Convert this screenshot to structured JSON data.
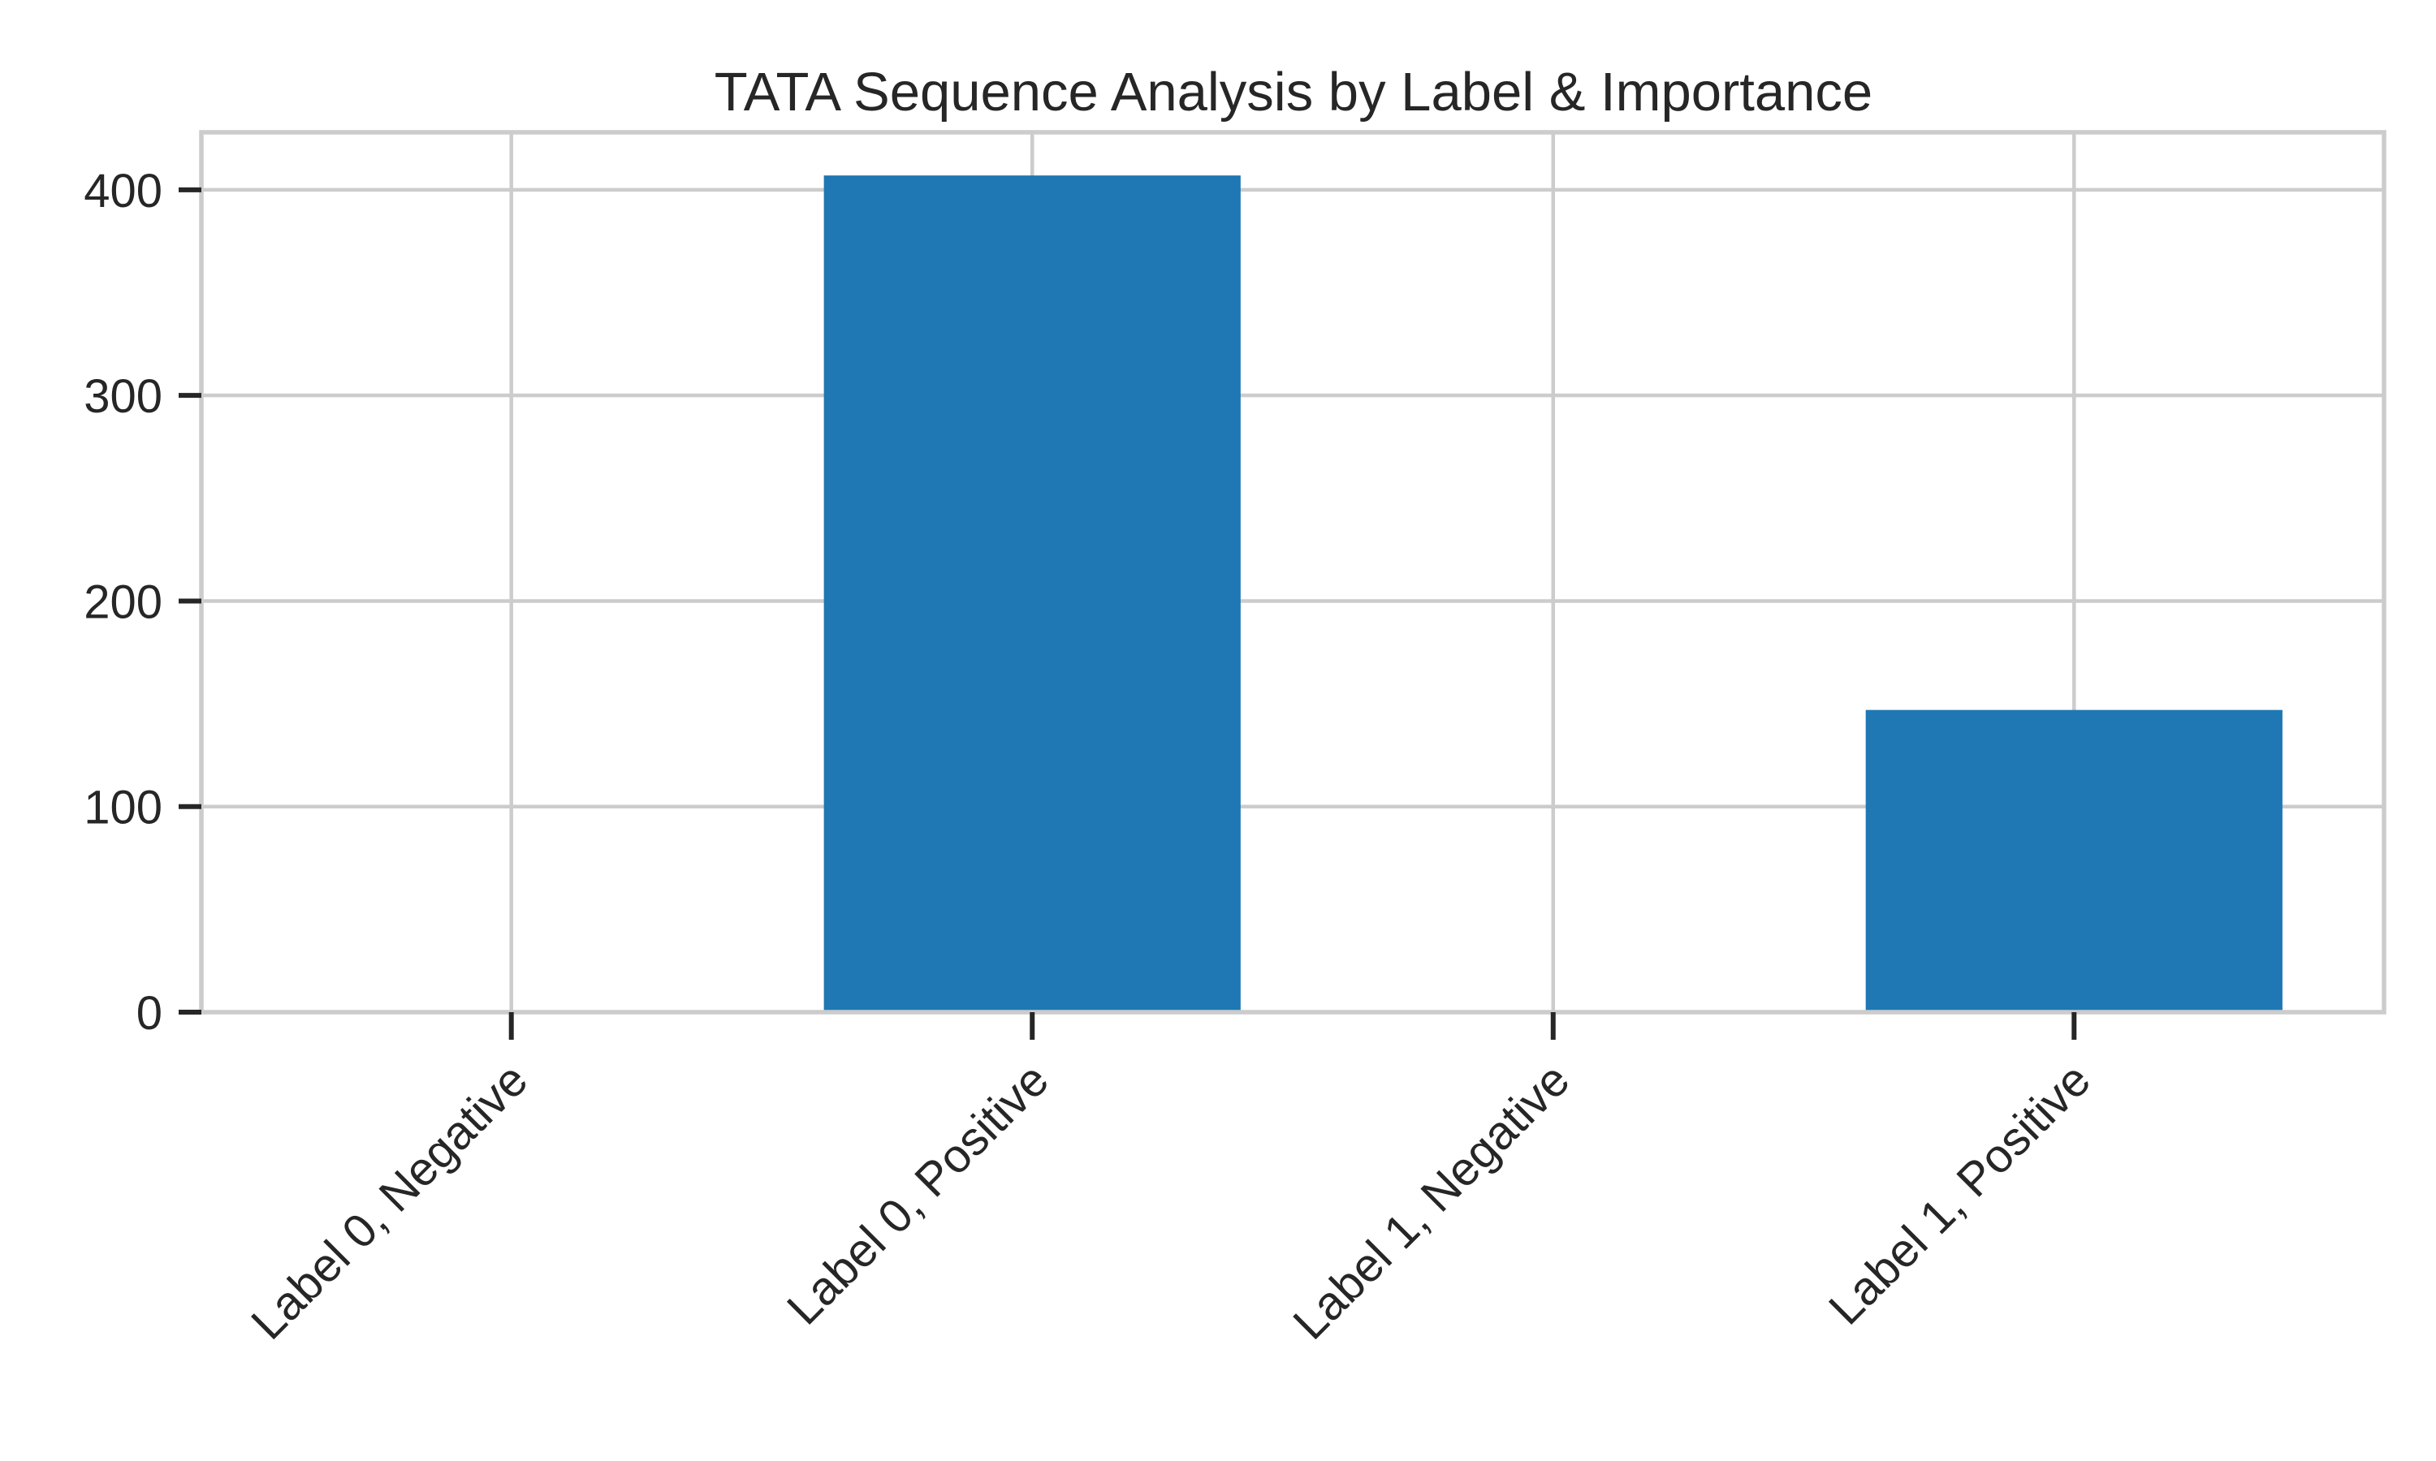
{
  "chart_data": {
    "type": "bar",
    "title": "TATA Sequence Analysis by Label & Importance",
    "xlabel": "",
    "ylabel": "",
    "categories": [
      "Label 0, Negative",
      "Label 0, Positive",
      "Label 1, Negative",
      "Label 1, Positive"
    ],
    "values": [
      0,
      407,
      0,
      147
    ],
    "ylim": [
      0,
      428
    ],
    "yticks": [
      0,
      100,
      200,
      300,
      400
    ],
    "grid": true,
    "bar_color": "#1f77b4",
    "grid_color": "#cccccc",
    "axis_text_color": "#262626"
  }
}
